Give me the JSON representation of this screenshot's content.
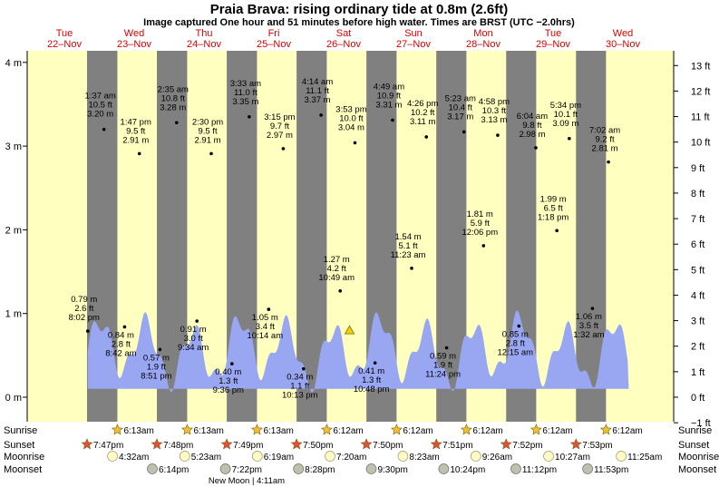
{
  "header": {
    "title": "Praia Brava: rising  ordinary tide at 0.8m (2.6ft)",
    "subtitle": "Image captured One hour and 51 minutes before high water. Times are BRST (UTC −2.0hrs)"
  },
  "chart_data": {
    "type": "area",
    "title": "Praia Brava: rising  ordinary tide at 0.8m (2.6ft)",
    "ylim_m": [
      -0.33,
      4.33
    ],
    "left_axis_ticks": [
      "0 m",
      "1 m",
      "2 m",
      "3 m",
      "4 m"
    ],
    "right_axis_ticks": [
      "−1 ft",
      "0 ft",
      "1 ft",
      "2 ft",
      "3 ft",
      "4 ft",
      "5 ft",
      "6 ft",
      "7 ft",
      "8 ft",
      "9 ft",
      "10 ft",
      "11 ft",
      "12 ft",
      "13 ft"
    ],
    "days": [
      {
        "dow": "Tue",
        "date": "22–Nov"
      },
      {
        "dow": "Wed",
        "date": "23–Nov"
      },
      {
        "dow": "Thu",
        "date": "24–Nov"
      },
      {
        "dow": "Fri",
        "date": "25–Nov"
      },
      {
        "dow": "Sat",
        "date": "26–Nov"
      },
      {
        "dow": "Sun",
        "date": "27–Nov"
      },
      {
        "dow": "Mon",
        "date": "28–Nov"
      },
      {
        "dow": "Tue",
        "date": "29–Nov"
      },
      {
        "dow": "Wed",
        "date": "30–Nov"
      }
    ],
    "tides": [
      {
        "type": "high",
        "day": 0,
        "time": "20:02",
        "m": 0.79,
        "label": [
          "0.79 m",
          "2.6 ft",
          "8:02 pm"
        ]
      },
      {
        "type": "high",
        "day": 1,
        "time": "01:37",
        "m": 3.2,
        "label": [
          "1:37 am",
          "10.5 ft",
          "3.20 m"
        ]
      },
      {
        "type": "low",
        "day": 1,
        "time": "08:42",
        "m": 0.84,
        "label": [
          "0.84 m",
          "2.8 ft",
          "8:42 am"
        ]
      },
      {
        "type": "high",
        "day": 1,
        "time": "13:47",
        "m": 2.91,
        "label": [
          "1:47 pm",
          "9.5 ft",
          "2.91 m"
        ]
      },
      {
        "type": "low",
        "day": 1,
        "time": "20:51",
        "m": 0.57,
        "label": [
          "0.57 m",
          "1.9 ft",
          "8:51 pm"
        ]
      },
      {
        "type": "high",
        "day": 2,
        "time": "02:35",
        "m": 3.28,
        "label": [
          "2:35 am",
          "10.8 ft",
          "3.28 m"
        ]
      },
      {
        "type": "low",
        "day": 2,
        "time": "09:34",
        "m": 0.91,
        "label": [
          "0.91 m",
          "3.0 ft",
          "9:34 am"
        ]
      },
      {
        "type": "high",
        "day": 2,
        "time": "14:30",
        "m": 2.91,
        "label": [
          "2:30 pm",
          "9.5 ft",
          "2.91 m"
        ]
      },
      {
        "type": "low",
        "day": 2,
        "time": "21:36",
        "m": 0.4,
        "label": [
          "0.40 m",
          "1.3 ft",
          "9:36 pm"
        ]
      },
      {
        "type": "high",
        "day": 3,
        "time": "03:33",
        "m": 3.35,
        "label": [
          "3:33 am",
          "11.0 ft",
          "3.35 m"
        ]
      },
      {
        "type": "low",
        "day": 3,
        "time": "10:14",
        "m": 1.05,
        "label": [
          "1.05 m",
          "3.4 ft",
          "10:14 am"
        ]
      },
      {
        "type": "high",
        "day": 3,
        "time": "15:15",
        "m": 2.97,
        "label": [
          "3:15 pm",
          "9.7 ft",
          "2.97 m"
        ]
      },
      {
        "type": "low",
        "day": 3,
        "time": "22:13",
        "m": 0.34,
        "label": [
          "0.34 m",
          "1.1 ft",
          "10:13 pm"
        ]
      },
      {
        "type": "high",
        "day": 4,
        "time": "04:14",
        "m": 3.37,
        "label": [
          "4:14 am",
          "11.1 ft",
          "3.37 m"
        ]
      },
      {
        "type": "low",
        "day": 4,
        "time": "10:49",
        "m": 1.27,
        "label": [
          "1.27 m",
          "4.2 ft",
          "10:49 am"
        ]
      },
      {
        "type": "high",
        "day": 4,
        "time": "15:53",
        "m": 3.04,
        "label": [
          "3:53 pm",
          "10.0 ft",
          "3.04 m"
        ]
      },
      {
        "type": "low",
        "day": 4,
        "time": "22:48",
        "m": 0.41,
        "label": [
          "0.41 m",
          "1.3 ft",
          "10:48 pm"
        ]
      },
      {
        "type": "high",
        "day": 5,
        "time": "04:49",
        "m": 3.31,
        "label": [
          "4:49 am",
          "10.9 ft",
          "3.31 m"
        ]
      },
      {
        "type": "low",
        "day": 5,
        "time": "11:23",
        "m": 1.54,
        "label": [
          "1.54 m",
          "5.1 ft",
          "11:23 am"
        ]
      },
      {
        "type": "high",
        "day": 5,
        "time": "16:26",
        "m": 3.11,
        "label": [
          "4:26 pm",
          "10.2 ft",
          "3.11 m"
        ]
      },
      {
        "type": "low",
        "day": 5,
        "time": "23:24",
        "m": 0.59,
        "label": [
          "0.59 m",
          "1.9 ft",
          "11:24 pm"
        ]
      },
      {
        "type": "high",
        "day": 6,
        "time": "05:23",
        "m": 3.17,
        "label": [
          "5:23 am",
          "10.4 ft",
          "3.17 m"
        ]
      },
      {
        "type": "low",
        "day": 6,
        "time": "12:06",
        "m": 1.81,
        "label": [
          "1.81 m",
          "5.9 ft",
          "12:06 pm"
        ]
      },
      {
        "type": "high",
        "day": 6,
        "time": "16:58",
        "m": 3.13,
        "label": [
          "4:58 pm",
          "10.3 ft",
          "3.13 m"
        ]
      },
      {
        "type": "low",
        "day": 7,
        "time": "00:15",
        "m": 0.85,
        "label": [
          "0.85 m",
          "2.8 ft",
          "12:15 am"
        ]
      },
      {
        "type": "high",
        "day": 7,
        "time": "06:04",
        "m": 2.98,
        "label": [
          "6:04 am",
          "9.8 ft",
          "2.98 m"
        ]
      },
      {
        "type": "low",
        "day": 7,
        "time": "13:18",
        "m": 1.99,
        "label": [
          "1.99 m",
          "6.5 ft",
          "1:18 pm"
        ]
      },
      {
        "type": "high",
        "day": 7,
        "time": "17:34",
        "m": 3.09,
        "label": [
          "5:34 pm",
          "10.1 ft",
          "3.09 m"
        ]
      },
      {
        "type": "low",
        "day": 8,
        "time": "01:32",
        "m": 1.06,
        "label": [
          "1.06 m",
          "3.5 ft",
          "1:32 am"
        ]
      },
      {
        "type": "high",
        "day": 8,
        "time": "07:02",
        "m": 2.81,
        "label": [
          "7:02 am",
          "9.2 ft",
          "2.81 m"
        ]
      }
    ],
    "swell_bands": [
      {
        "day": 0,
        "from": "20:02",
        "to": "24:00",
        "amp": 0.5
      },
      {
        "day": 1,
        "from": "00:00",
        "to": "24:00",
        "amp": 0.75
      },
      {
        "day": 2,
        "from": "00:00",
        "to": "24:00",
        "amp": 0.85
      },
      {
        "day": 3,
        "from": "00:00",
        "to": "24:00",
        "amp": 0.9
      },
      {
        "day": 4,
        "from": "00:00",
        "to": "24:00",
        "amp": 0.8
      },
      {
        "day": 5,
        "from": "00:00",
        "to": "24:00",
        "amp": 0.7
      },
      {
        "day": 6,
        "from": "00:00",
        "to": "24:00",
        "amp": 0.6
      },
      {
        "day": 7,
        "from": "00:00",
        "to": "24:00",
        "amp": 0.55
      },
      {
        "day": 8,
        "from": "00:00",
        "to": "14:00",
        "amp": 0.5
      }
    ],
    "current_marker": {
      "day": 4,
      "time": "14:02",
      "m": 0.8
    },
    "sun": {
      "sunrise": [
        "6:13am",
        "6:13am",
        "6:13am",
        "6:12am",
        "6:12am",
        "6:12am",
        "6:12am",
        "6:12am"
      ],
      "sunrise_days": [
        1,
        2,
        3,
        4,
        5,
        6,
        7,
        8
      ],
      "sunset": [
        "7:47pm",
        "7:48pm",
        "7:49pm",
        "7:50pm",
        "7:50pm",
        "7:51pm",
        "7:52pm",
        "7:53pm"
      ],
      "sunset_days": [
        0,
        1,
        2,
        3,
        4,
        5,
        6,
        7
      ]
    },
    "moon": {
      "moonrise": [
        "4:32am",
        "5:23am",
        "6:19am",
        "7:20am",
        "8:23am",
        "9:26am",
        "10:27am",
        "11:25am"
      ],
      "moonrise_days": [
        1,
        2,
        3,
        4,
        5,
        6,
        7,
        8
      ],
      "moonset": [
        "6:14pm",
        "7:22pm",
        "8:28pm",
        "9:30pm",
        "10:24pm",
        "11:12pm",
        "11:53pm"
      ],
      "moonset_days": [
        1,
        2,
        3,
        4,
        5,
        6,
        7
      ],
      "phase_note": "New Moon | 4:11am"
    },
    "row_labels": {
      "sunrise": "Sunrise",
      "sunset": "Sunset",
      "moonrise": "Moonrise",
      "moonset": "Moonset"
    },
    "colors": {
      "day": "#ffffc0",
      "night": "#808080",
      "tide": "#99a6f2",
      "day_header": "#dd0000",
      "star": "#f0c030",
      "sunset_star": "#e05040",
      "moon_light": "#fffbc8",
      "moon_dark": "#c0c0b0"
    }
  }
}
